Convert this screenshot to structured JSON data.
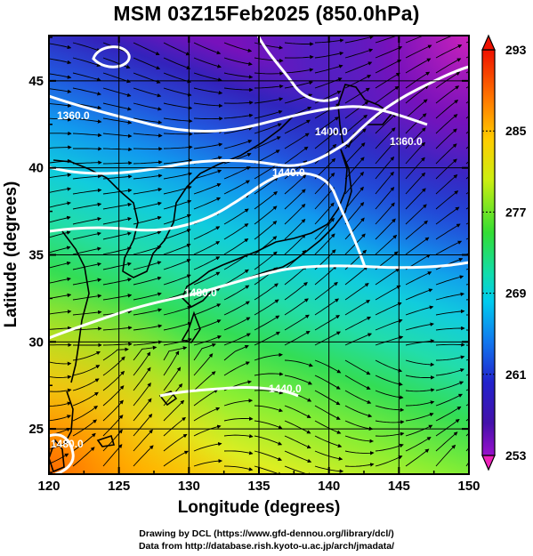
{
  "title": "MSM 03Z15Feb2025 (850.0hPa)",
  "axes": {
    "xlabel": "Longitude (degrees)",
    "ylabel": "Latitude  (degrees)",
    "xlim": [
      120,
      150
    ],
    "ylim": [
      22.4,
      47.6
    ],
    "x_ticks": [
      "120",
      "125",
      "130",
      "135",
      "140",
      "145",
      "150"
    ],
    "y_ticks": [
      "25",
      "30",
      "35",
      "40",
      "45"
    ]
  },
  "colorbar": {
    "min": 253,
    "max": 293,
    "labels": [
      "293",
      "285",
      "277",
      "269",
      "261",
      "253"
    ],
    "colors": [
      "#ee1100",
      "#ff7700",
      "#ffcc00",
      "#ccee11",
      "#33dd33",
      "#11ddaa",
      "#00ccee",
      "#1177ee",
      "#2222cc",
      "#4411aa",
      "#9911cc",
      "#ee22bb"
    ]
  },
  "contour_labels": [
    "1360.0",
    "1400.0",
    "1360.0",
    "1440.0",
    "1480.0",
    "1440.0",
    "1480.0"
  ],
  "credits": {
    "line1": "Drawing by DCL (https://www.gfd-dennou.org/library/dcl/)",
    "line2": "Data from http://database.rish.kyoto-u.ac.jp/arch/jmadata/"
  }
}
